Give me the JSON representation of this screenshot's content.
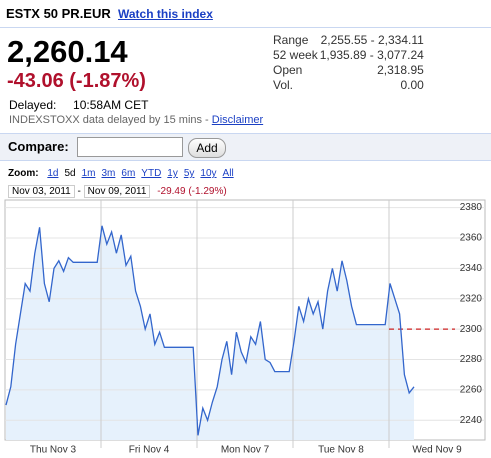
{
  "header": {
    "title": "ESTX 50 PR.EUR",
    "watch_link": "Watch this index"
  },
  "quote": {
    "price": "2,260.14",
    "change": "-43.06 (-1.87%)",
    "delayed_label": "Delayed:",
    "delayed_time": "10:58AM CET",
    "note": "INDEXSTOXX data delayed by 15 mins -",
    "disclaimer": "Disclaimer"
  },
  "stats": [
    [
      "Range",
      "2,255.55 - 2,334.11"
    ],
    [
      "52 week",
      "1,935.89 - 3,077.24"
    ],
    [
      "Open",
      "2,318.95"
    ],
    [
      "Vol.",
      "0.00"
    ]
  ],
  "compare": {
    "label": "Compare:",
    "button": "Add"
  },
  "zoom": {
    "label": "Zoom:",
    "options": [
      "1d",
      "5d",
      "1m",
      "3m",
      "6m",
      "YTD",
      "1y",
      "5y",
      "10y",
      "All"
    ],
    "selected": 1
  },
  "range": {
    "start": "Nov 03, 2011",
    "separator": "-",
    "end": "Nov 09, 2011",
    "change": "-29.49 (-1.29%)"
  },
  "chart_data": {
    "type": "line",
    "color": "#3366cc",
    "fill": "#e6f1fc",
    "ylim": [
      2227,
      2385
    ],
    "yticks": [
      2240,
      2260,
      2280,
      2300,
      2320,
      2340,
      2360,
      2380
    ],
    "grid": true,
    "reference": {
      "value": 2300,
      "color": "#cc2222"
    },
    "days": [
      {
        "label": "Thu Nov 3",
        "values": [
          2250,
          2262,
          2290,
          2310,
          2330,
          2325,
          2350,
          2367,
          2330,
          2318,
          2340,
          2345,
          2338,
          2347,
          2344,
          2344,
          2344,
          2344,
          2344,
          2344
        ]
      },
      {
        "label": "Fri Nov 4",
        "values": [
          2368,
          2356,
          2364,
          2350,
          2362,
          2342,
          2348,
          2325,
          2315,
          2300,
          2310,
          2290,
          2298,
          2288,
          2288,
          2288,
          2288,
          2288,
          2288,
          2288
        ]
      },
      {
        "label": "Mon Nov 7",
        "values": [
          2230,
          2248,
          2240,
          2252,
          2262,
          2280,
          2292,
          2270,
          2298,
          2285,
          2278,
          2295,
          2290,
          2305,
          2280,
          2278,
          2272,
          2272,
          2272,
          2272
        ]
      },
      {
        "label": "Tue Nov 8",
        "values": [
          2292,
          2315,
          2305,
          2320,
          2310,
          2318,
          2300,
          2325,
          2340,
          2325,
          2345,
          2332,
          2315,
          2303,
          2303,
          2303,
          2303,
          2303,
          2303,
          2303
        ]
      },
      {
        "label": "Wed Nov 9",
        "values": [
          2330,
          2320,
          2310,
          2270,
          2258,
          2262
        ]
      }
    ]
  }
}
